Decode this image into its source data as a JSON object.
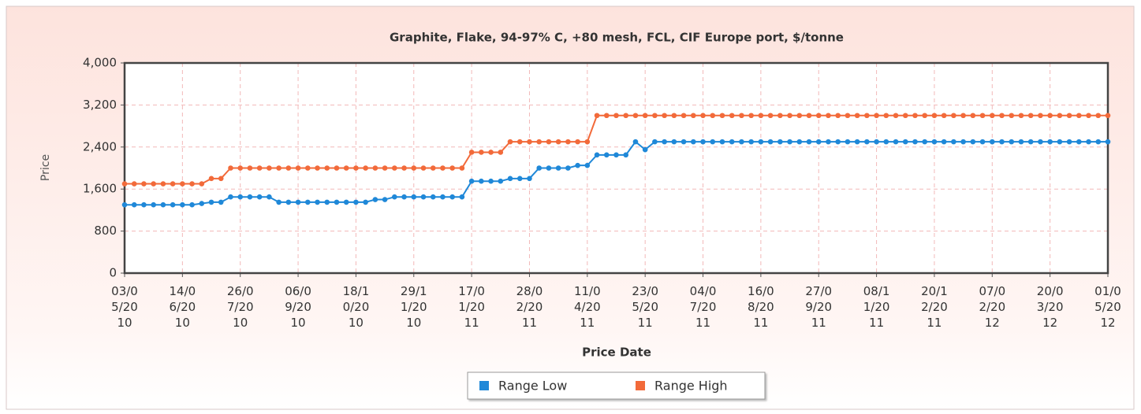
{
  "chart_data": {
    "type": "line",
    "title": "Graphite, Flake, 94-97% C, +80 mesh, FCL, CIF Europe port, $/tonne",
    "x_label": "Price Date",
    "y_label": "Price",
    "categories": [
      "03/05/2010",
      null,
      null,
      null,
      null,
      null,
      "14/06/2010",
      null,
      null,
      null,
      null,
      null,
      "26/07/2010",
      null,
      null,
      null,
      null,
      null,
      "06/09/2010",
      null,
      null,
      null,
      null,
      null,
      "18/10/2010",
      null,
      null,
      null,
      null,
      null,
      "29/11/2010",
      null,
      null,
      null,
      null,
      null,
      "17/01/2011",
      null,
      null,
      null,
      null,
      null,
      "28/02/2011",
      null,
      null,
      null,
      null,
      null,
      "11/04/2011",
      null,
      null,
      null,
      null,
      null,
      "23/05/2011",
      null,
      null,
      null,
      null,
      null,
      "04/07/2011",
      null,
      null,
      null,
      null,
      null,
      "16/08/2011",
      null,
      null,
      null,
      null,
      null,
      "27/09/2011",
      null,
      null,
      null,
      null,
      null,
      "08/11/2011",
      null,
      null,
      null,
      null,
      null,
      "20/12/2011",
      null,
      null,
      null,
      null,
      null,
      "07/02/2012",
      null,
      null,
      null,
      null,
      null,
      "20/03/2012",
      null,
      null,
      null,
      null,
      null,
      "01/05/2012"
    ],
    "series": [
      {
        "name": "Range Low",
        "color": "#1f88d8",
        "values": [
          1300,
          1300,
          1300,
          1300,
          1300,
          1300,
          1300,
          1300,
          1325,
          1350,
          1350,
          1450,
          1450,
          1450,
          1450,
          1450,
          1350,
          1350,
          1350,
          1350,
          1350,
          1350,
          1350,
          1350,
          1350,
          1350,
          1400,
          1400,
          1450,
          1450,
          1450,
          1450,
          1450,
          1450,
          1450,
          1450,
          1750,
          1750,
          1750,
          1750,
          1800,
          1800,
          1800,
          2000,
          2000,
          2000,
          2000,
          2050,
          2050,
          2250,
          2250,
          2250,
          2250,
          2500,
          2350,
          2500,
          2500,
          2500,
          2500,
          2500,
          2500,
          2500,
          2500,
          2500,
          2500,
          2500,
          2500,
          2500,
          2500,
          2500,
          2500,
          2500,
          2500,
          2500,
          2500,
          2500,
          2500,
          2500,
          2500,
          2500,
          2500,
          2500,
          2500,
          2500,
          2500,
          2500,
          2500,
          2500,
          2500,
          2500,
          2500,
          2500,
          2500,
          2500,
          2500,
          2500,
          2500,
          2500,
          2500,
          2500,
          2500,
          2500,
          2500
        ]
      },
      {
        "name": "Range High",
        "color": "#f26a3a",
        "values": [
          1700,
          1700,
          1700,
          1700,
          1700,
          1700,
          1700,
          1700,
          1700,
          1800,
          1800,
          2000,
          2000,
          2000,
          2000,
          2000,
          2000,
          2000,
          2000,
          2000,
          2000,
          2000,
          2000,
          2000,
          2000,
          2000,
          2000,
          2000,
          2000,
          2000,
          2000,
          2000,
          2000,
          2000,
          2000,
          2000,
          2300,
          2300,
          2300,
          2300,
          2500,
          2500,
          2500,
          2500,
          2500,
          2500,
          2500,
          2500,
          2500,
          3000,
          3000,
          3000,
          3000,
          3000,
          3000,
          3000,
          3000,
          3000,
          3000,
          3000,
          3000,
          3000,
          3000,
          3000,
          3000,
          3000,
          3000,
          3000,
          3000,
          3000,
          3000,
          3000,
          3000,
          3000,
          3000,
          3000,
          3000,
          3000,
          3000,
          3000,
          3000,
          3000,
          3000,
          3000,
          3000,
          3000,
          3000,
          3000,
          3000,
          3000,
          3000,
          3000,
          3000,
          3000,
          3000,
          3000,
          3000,
          3000,
          3000,
          3000,
          3000,
          3000,
          3000
        ]
      }
    ],
    "ylim": [
      0,
      4000
    ],
    "yticks": [
      0,
      800,
      {
        "value": 1600,
        "label": "1,600"
      },
      {
        "value": 2400,
        "label": "2,400"
      },
      {
        "value": 3200,
        "label": "3,200"
      },
      {
        "value": 4000,
        "label": "4,000"
      }
    ],
    "grid": true,
    "legend": "bottom"
  }
}
